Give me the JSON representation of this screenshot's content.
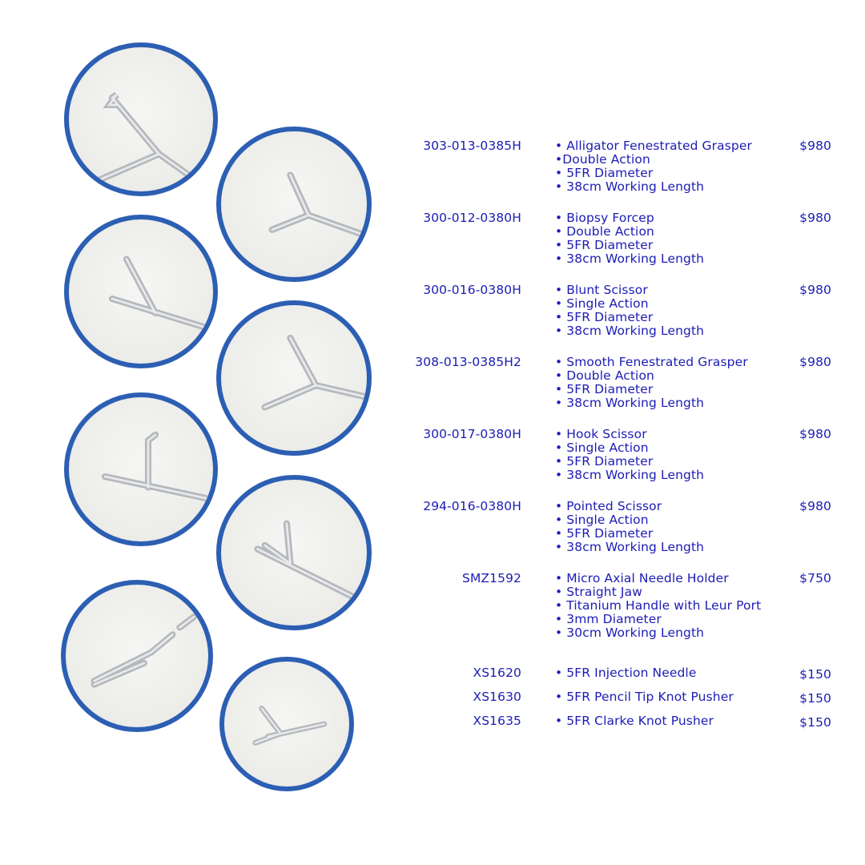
{
  "colors": {
    "text": "#1c1cb5",
    "circle_border": "#2c5fb3"
  },
  "images": [
    {
      "name": "alligator-fenestrated-grasper-image"
    },
    {
      "name": "biopsy-forcep-image"
    },
    {
      "name": "blunt-scissor-image"
    },
    {
      "name": "smooth-fenestrated-grasper-image"
    },
    {
      "name": "hook-scissor-image"
    },
    {
      "name": "pointed-scissor-image"
    },
    {
      "name": "needle-holder-image"
    },
    {
      "name": "grasper-image"
    }
  ],
  "products": [
    {
      "code": "303-013-0385H",
      "lines": [
        "• Alligator Fenestrated Grasper",
        "•Double Action",
        "• 5FR Diameter",
        "• 38cm Working Length"
      ],
      "price": "$980"
    },
    {
      "code": "300-012-0380H",
      "lines": [
        "• Biopsy Forcep",
        "• Double Action",
        "• 5FR Diameter",
        "• 38cm Working Length"
      ],
      "price": "$980"
    },
    {
      "code": "300-016-0380H",
      "lines": [
        "• Blunt Scissor",
        "• Single Action",
        "• 5FR Diameter",
        "• 38cm Working Length"
      ],
      "price": "$980"
    },
    {
      "code": "308-013-0385H2",
      "lines": [
        "• Smooth Fenestrated Grasper",
        "• Double Action",
        "• 5FR Diameter",
        "• 38cm Working Length"
      ],
      "price": "$980"
    },
    {
      "code": "300-017-0380H",
      "lines": [
        "• Hook Scissor",
        "• Single Action",
        "• 5FR Diameter",
        "• 38cm Working Length"
      ],
      "price": "$980"
    },
    {
      "code": "294-016-0380H",
      "lines": [
        "• Pointed Scissor",
        "• Single Action",
        "• 5FR Diameter",
        "• 38cm Working Length"
      ],
      "price": "$980"
    },
    {
      "code": "SMZ1592",
      "lines": [
        "• Micro Axial Needle Holder",
        "• Straight Jaw",
        "• Titanium Handle with Leur Port",
        "• 3mm Diameter",
        "• 30cm Working Length"
      ],
      "price": "$750"
    },
    {
      "code": "XS1620",
      "lines": [
        "• 5FR Injection Needle"
      ],
      "price": "$150"
    },
    {
      "code": "XS1630",
      "lines": [
        "• 5FR Pencil Tip Knot Pusher"
      ],
      "price": "$150"
    },
    {
      "code": "XS1635",
      "lines": [
        "• 5FR Clarke Knot Pusher"
      ],
      "price": "$150"
    }
  ]
}
